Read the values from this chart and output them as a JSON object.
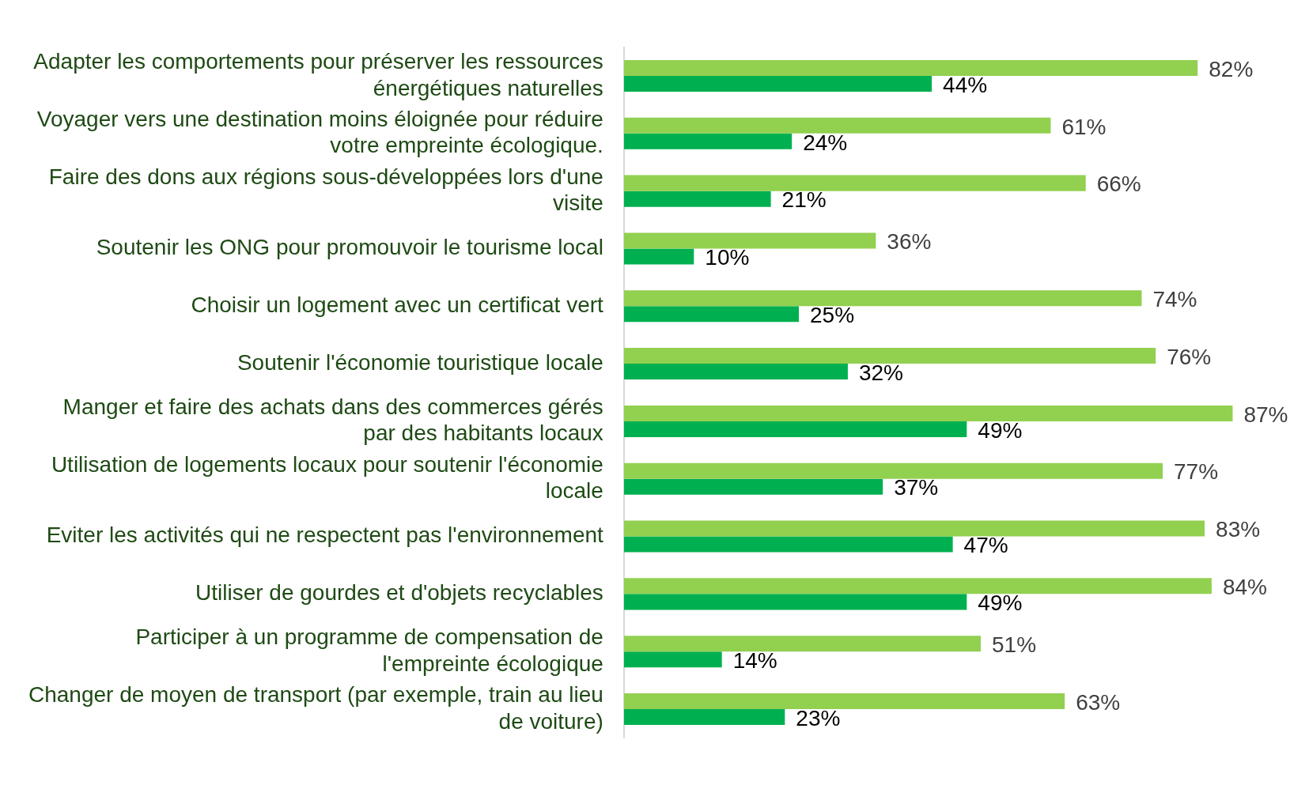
{
  "chart_data": {
    "type": "bar",
    "orientation": "horizontal",
    "categories": [
      "Adapter les comportements pour préserver les ressources énergétiques naturelles",
      "Voyager vers une destination moins éloignée pour réduire votre empreinte écologique.",
      "Faire des dons aux régions sous-développées lors d'une visite",
      "Soutenir les ONG pour promouvoir le tourisme local",
      "Choisir un logement avec un certificat vert",
      "Soutenir l'économie touristique locale",
      "Manger et faire des achats dans des commerces gérés par des habitants locaux",
      "Utilisation de logements locaux pour soutenir l'économie locale",
      "Eviter les activités qui ne respectent pas l'environnement",
      "Utiliser de gourdes et d'objets recyclables",
      "Participer à un programme de compensation de l'empreinte écologique",
      "Changer de moyen de transport (par exemple, train au lieu de voiture)"
    ],
    "series": [
      {
        "color": "#92d050",
        "values": [
          82,
          61,
          66,
          36,
          74,
          76,
          87,
          77,
          83,
          84,
          51,
          63
        ],
        "value_labels": [
          "82%",
          "61%",
          "66%",
          "36%",
          "74%",
          "76%",
          "87%",
          "77%",
          "83%",
          "84%",
          "51%",
          "63%"
        ]
      },
      {
        "color": "#00b050",
        "values": [
          44,
          24,
          21,
          10,
          25,
          32,
          49,
          37,
          47,
          49,
          14,
          23
        ],
        "value_labels": [
          "44%",
          "24%",
          "21%",
          "10%",
          "25%",
          "32%",
          "49%",
          "37%",
          "47%",
          "49%",
          "14%",
          "23%"
        ]
      }
    ]
  }
}
